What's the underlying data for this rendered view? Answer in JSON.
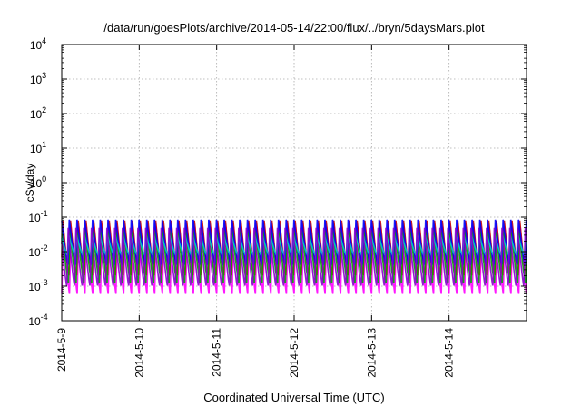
{
  "chart_data": {
    "type": "line",
    "title": "/data/run/goesPlots/archive/2014-05-14/22:00/flux/../bryn/5daysMars.plot",
    "xlabel": "Coordinated Universal Time (UTC)",
    "ylabel": "cSv/day",
    "yscale": "log",
    "ylim_exponents": [
      -4,
      4
    ],
    "y_tick_labels": [
      {
        "base": "10",
        "exp": "-4"
      },
      {
        "base": "10",
        "exp": "-3"
      },
      {
        "base": "10",
        "exp": "-2"
      },
      {
        "base": "10",
        "exp": "-1"
      },
      {
        "base": "10",
        "exp": "0"
      },
      {
        "base": "10",
        "exp": "1"
      },
      {
        "base": "10",
        "exp": "2"
      },
      {
        "base": "10",
        "exp": "3"
      },
      {
        "base": "10",
        "exp": "4"
      }
    ],
    "x_ticks": [
      "2014-5-9",
      "2014-5-10",
      "2014-5-11",
      "2014-5-12",
      "2014-5-13",
      "2014-5-14"
    ],
    "xlim": [
      "2014-5-9",
      "2014-5-15"
    ],
    "grid": true,
    "oscillation_period_hours": 2.4,
    "series": [
      {
        "color": "#ff00ff",
        "peak": 0.06,
        "trough": 0.0006
      },
      {
        "color": "#cc0000",
        "peak": 0.09,
        "trough": 0.002
      },
      {
        "color": "#00aa00",
        "peak": 0.04,
        "trough": 0.0012
      },
      {
        "color": "#0000ff",
        "peak": 0.09,
        "trough": 0.004
      },
      {
        "color": "#00cccc",
        "peak": 0.03,
        "trough": 0.008
      },
      {
        "color": "#8800cc",
        "peak": 0.05,
        "trough": 0.001
      }
    ]
  }
}
